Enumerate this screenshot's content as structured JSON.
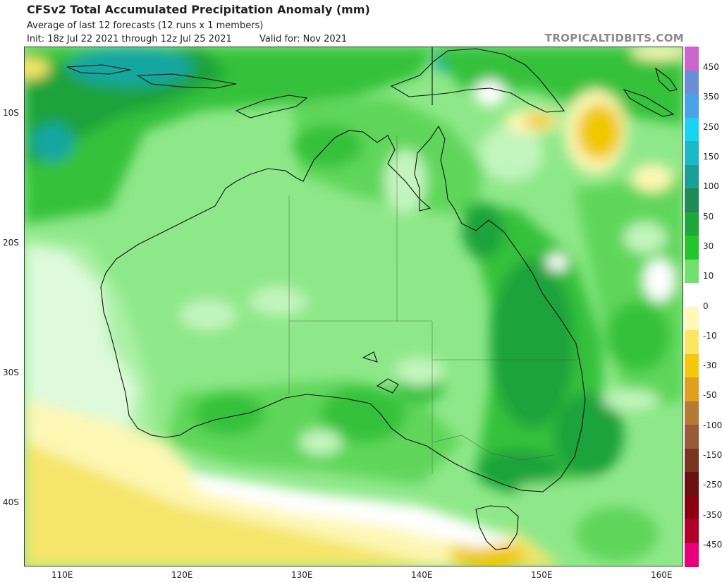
{
  "header": {
    "title": "CFSv2 Total Accumulated Precipitation Anomaly (mm)",
    "subtitle": "Average of last 12 forecasts (12 runs x 1 members)",
    "init": "Init: 18z Jul 22 2021 through 12z Jul 25 2021",
    "valid": "Valid for: Nov 2021",
    "brand": "TROPICALTIDBITS.COM"
  },
  "map": {
    "region": "Australia",
    "projection": "equirectangular",
    "lon_range": [
      107,
      162
    ],
    "lat_range": [
      -45,
      -5
    ],
    "lon_ticks": [
      "110E",
      "120E",
      "130E",
      "140E",
      "150E",
      "160E"
    ],
    "lat_ticks": [
      "10S",
      "20S",
      "30S",
      "40S"
    ],
    "colors": {
      "ocean_wet_dark": "#1fa33a",
      "wet_green": "#35c13b",
      "wet_mid": "#5fd65a",
      "wet_light": "#8ee889",
      "wet_pale": "#c3f5be",
      "neutral": "#ffffff",
      "dry_pale": "#fdf7b4",
      "dry_yellow": "#f5e56a",
      "dry_gold": "#f0c800",
      "teal": "#19a6a0",
      "coast": "#111111"
    }
  },
  "colorbar": {
    "labels": [
      "450",
      "350",
      "250",
      "150",
      "100",
      "50",
      "30",
      "10",
      "0",
      "-10",
      "-30",
      "-50",
      "-100",
      "-150",
      "-250",
      "-350",
      "-450"
    ],
    "colors": [
      "#cc66cc",
      "#6a8fd6",
      "#4aa3e8",
      "#19d4f0",
      "#19b9c8",
      "#1a9e95",
      "#1e8a55",
      "#1ea83c",
      "#25c52e",
      "#72e06c",
      "#ffffff",
      "#fff8b8",
      "#fbe664",
      "#f5c80f",
      "#e0a01e",
      "#b77a35",
      "#9a5a35",
      "#7a3520",
      "#6b1010",
      "#8a0010",
      "#b0002a",
      "#e8007a"
    ]
  }
}
